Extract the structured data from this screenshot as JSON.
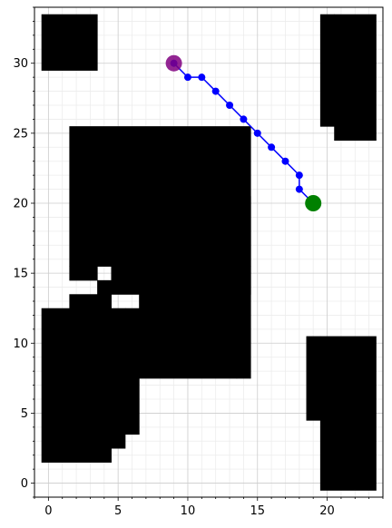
{
  "chart_data": {
    "type": "scatter",
    "title": "",
    "xlabel": "",
    "ylabel": "",
    "xlim": [
      -1,
      24
    ],
    "ylim": [
      -1,
      34
    ],
    "xticks": [
      0,
      5,
      10,
      15,
      20
    ],
    "yticks": [
      0,
      5,
      10,
      15,
      20,
      25,
      30
    ],
    "grid": true,
    "minor_grid": true,
    "colors": {
      "obstacle": "#000000",
      "path": "#0000ff",
      "start": "#800080",
      "goal": "#008000",
      "grid_major": "#cccccc",
      "grid_minor": "#ececec"
    },
    "obstacles": [
      [
        0,
        30,
        4,
        34
      ],
      [
        20,
        26,
        21,
        34
      ],
      [
        21,
        25,
        24,
        34
      ],
      [
        2,
        16,
        15,
        26
      ],
      [
        2,
        15,
        4,
        16
      ],
      [
        5,
        14,
        15,
        16
      ],
      [
        14,
        8,
        15,
        21
      ],
      [
        0,
        2,
        5,
        13
      ],
      [
        5,
        3,
        6,
        13
      ],
      [
        6,
        4,
        7,
        13
      ],
      [
        2,
        13,
        5,
        14
      ],
      [
        4,
        14,
        5,
        15
      ],
      [
        7,
        8,
        14,
        14
      ],
      [
        19,
        5,
        20,
        11
      ],
      [
        20,
        0,
        24,
        11
      ]
    ],
    "path": {
      "x": [
        9,
        10,
        11,
        12,
        13,
        14,
        15,
        16,
        17,
        18,
        18,
        19
      ],
      "y": [
        30,
        29,
        29,
        28,
        27,
        26,
        25,
        24,
        23,
        22,
        21,
        20
      ]
    },
    "start": {
      "x": 9,
      "y": 30
    },
    "goal": {
      "x": 19,
      "y": 20
    }
  }
}
